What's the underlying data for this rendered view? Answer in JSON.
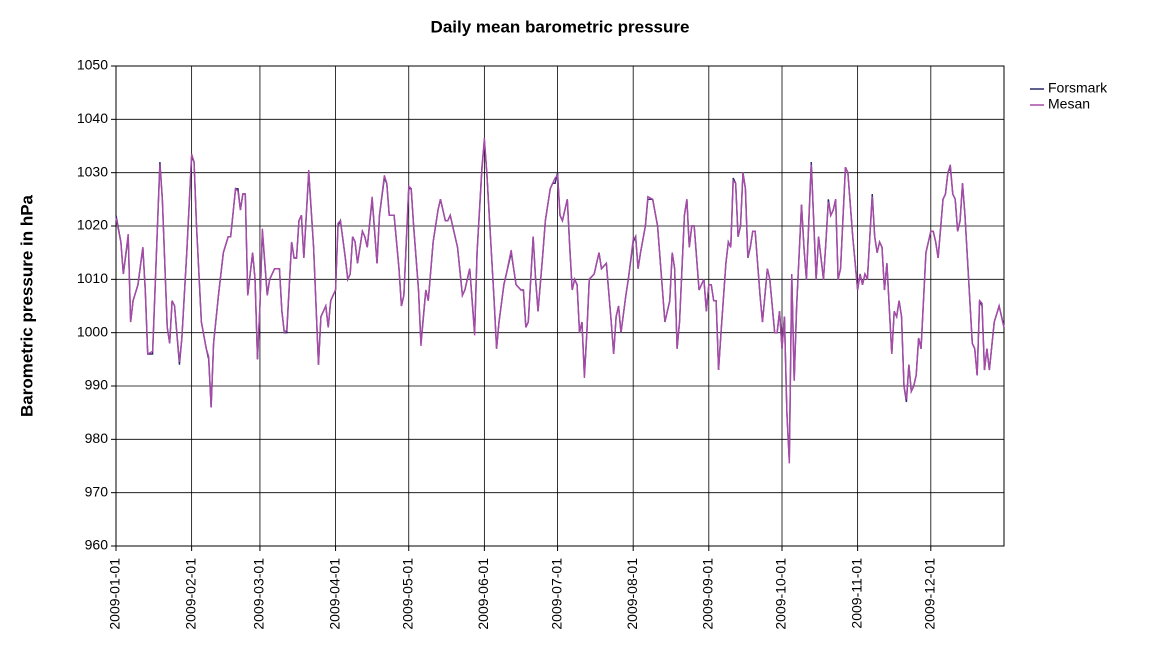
{
  "chart_data": {
    "type": "line",
    "title": "Daily mean barometric pressure",
    "y_label": "Barometric pressure in hPa",
    "x": [
      "2009-01-01",
      "2009-01-03",
      "2009-01-04",
      "2009-01-06",
      "2009-01-07",
      "2009-01-08",
      "2009-01-10",
      "2009-01-12",
      "2009-01-13",
      "2009-01-14",
      "2009-01-16",
      "2009-01-18",
      "2009-01-19",
      "2009-01-20",
      "2009-01-22",
      "2009-01-23",
      "2009-01-24",
      "2009-01-25",
      "2009-01-27",
      "2009-01-28",
      "2009-01-30",
      "2009-02-01",
      "2009-02-02",
      "2009-02-03",
      "2009-02-05",
      "2009-02-07",
      "2009-02-08",
      "2009-02-09",
      "2009-02-10",
      "2009-02-12",
      "2009-02-14",
      "2009-02-16",
      "2009-02-17",
      "2009-02-19",
      "2009-02-20",
      "2009-02-21",
      "2009-02-22",
      "2009-02-23",
      "2009-02-24",
      "2009-02-26",
      "2009-02-27",
      "2009-02-28",
      "2009-03-01",
      "2009-03-02",
      "2009-03-04",
      "2009-03-05",
      "2009-03-07",
      "2009-03-09",
      "2009-03-10",
      "2009-03-11",
      "2009-03-12",
      "2009-03-14",
      "2009-03-15",
      "2009-03-16",
      "2009-03-17",
      "2009-03-18",
      "2009-03-19",
      "2009-03-21",
      "2009-03-23",
      "2009-03-25",
      "2009-03-26",
      "2009-03-28",
      "2009-03-29",
      "2009-03-30",
      "2009-03-31",
      "2009-04-01",
      "2009-04-02",
      "2009-04-03",
      "2009-04-05",
      "2009-04-06",
      "2009-04-07",
      "2009-04-08",
      "2009-04-09",
      "2009-04-10",
      "2009-04-12",
      "2009-04-13",
      "2009-04-14",
      "2009-04-16",
      "2009-04-18",
      "2009-04-19",
      "2009-04-21",
      "2009-04-22",
      "2009-04-23",
      "2009-04-25",
      "2009-04-27",
      "2009-04-28",
      "2009-04-29",
      "2009-05-01",
      "2009-05-02",
      "2009-05-03",
      "2009-05-05",
      "2009-05-06",
      "2009-05-08",
      "2009-05-09",
      "2009-05-11",
      "2009-05-13",
      "2009-05-14",
      "2009-05-16",
      "2009-05-17",
      "2009-05-18",
      "2009-05-19",
      "2009-05-21",
      "2009-05-23",
      "2009-05-24",
      "2009-05-26",
      "2009-05-28",
      "2009-05-29",
      "2009-05-31",
      "2009-06-01",
      "2009-06-02",
      "2009-06-03",
      "2009-06-05",
      "2009-06-06",
      "2009-06-07",
      "2009-06-09",
      "2009-06-10",
      "2009-06-12",
      "2009-06-13",
      "2009-06-14",
      "2009-06-16",
      "2009-06-17",
      "2009-06-18",
      "2009-06-19",
      "2009-06-21",
      "2009-06-22",
      "2009-06-23",
      "2009-06-25",
      "2009-06-26",
      "2009-06-28",
      "2009-06-29",
      "2009-06-30",
      "2009-07-01",
      "2009-07-02",
      "2009-07-03",
      "2009-07-05",
      "2009-07-06",
      "2009-07-07",
      "2009-07-08",
      "2009-07-09",
      "2009-07-10",
      "2009-07-11",
      "2009-07-12",
      "2009-07-13",
      "2009-07-14",
      "2009-07-16",
      "2009-07-17",
      "2009-07-18",
      "2009-07-19",
      "2009-07-21",
      "2009-07-23",
      "2009-07-24",
      "2009-07-25",
      "2009-07-26",
      "2009-07-27",
      "2009-07-29",
      "2009-07-30",
      "2009-08-01",
      "2009-08-02",
      "2009-08-03",
      "2009-08-04",
      "2009-08-06",
      "2009-08-07",
      "2009-08-09",
      "2009-08-11",
      "2009-08-13",
      "2009-08-14",
      "2009-08-16",
      "2009-08-17",
      "2009-08-18",
      "2009-08-19",
      "2009-08-20",
      "2009-08-22",
      "2009-08-23",
      "2009-08-24",
      "2009-08-25",
      "2009-08-26",
      "2009-08-28",
      "2009-08-30",
      "2009-08-31",
      "2009-09-01",
      "2009-09-02",
      "2009-09-03",
      "2009-09-04",
      "2009-09-05",
      "2009-09-06",
      "2009-09-08",
      "2009-09-09",
      "2009-09-10",
      "2009-09-11",
      "2009-09-12",
      "2009-09-13",
      "2009-09-14",
      "2009-09-15",
      "2009-09-16",
      "2009-09-17",
      "2009-09-18",
      "2009-09-19",
      "2009-09-20",
      "2009-09-22",
      "2009-09-23",
      "2009-09-25",
      "2009-09-26",
      "2009-09-28",
      "2009-09-29",
      "2009-09-30",
      "2009-10-01",
      "2009-10-02",
      "2009-10-03",
      "2009-10-04",
      "2009-10-05",
      "2009-10-06",
      "2009-10-07",
      "2009-10-09",
      "2009-10-10",
      "2009-10-11",
      "2009-10-13",
      "2009-10-15",
      "2009-10-16",
      "2009-10-17",
      "2009-10-18",
      "2009-10-19",
      "2009-10-20",
      "2009-10-21",
      "2009-10-22",
      "2009-10-23",
      "2009-10-24",
      "2009-10-25",
      "2009-10-27",
      "2009-10-28",
      "2009-10-30",
      "2009-11-01",
      "2009-11-02",
      "2009-11-03",
      "2009-11-04",
      "2009-11-05",
      "2009-11-07",
      "2009-11-08",
      "2009-11-09",
      "2009-11-10",
      "2009-11-11",
      "2009-11-12",
      "2009-11-13",
      "2009-11-15",
      "2009-11-16",
      "2009-11-17",
      "2009-11-18",
      "2009-11-19",
      "2009-11-20",
      "2009-11-21",
      "2009-11-22",
      "2009-11-23",
      "2009-11-24",
      "2009-11-25",
      "2009-11-26",
      "2009-11-27",
      "2009-11-29",
      "2009-12-01",
      "2009-12-02",
      "2009-12-03",
      "2009-12-04",
      "2009-12-06",
      "2009-12-07",
      "2009-12-08",
      "2009-12-09",
      "2009-12-10",
      "2009-12-11",
      "2009-12-12",
      "2009-12-13",
      "2009-12-14",
      "2009-12-15",
      "2009-12-17",
      "2009-12-18",
      "2009-12-19",
      "2009-12-20",
      "2009-12-21",
      "2009-12-22",
      "2009-12-23",
      "2009-12-24",
      "2009-12-25",
      "2009-12-27",
      "2009-12-29",
      "2009-12-31"
    ],
    "series": [
      {
        "name": "Forsmark",
        "color": "#2b2a6b",
        "values": [
          1022,
          1017,
          1011,
          1018,
          1002,
          1006,
          1009,
          1016,
          1008,
          996,
          996,
          1020,
          1032,
          1025,
          1001,
          998,
          1006,
          1005,
          994,
          999,
          1015,
          1033,
          1032,
          1020,
          1002,
          997,
          995,
          986,
          998,
          1007,
          1015,
          1018,
          1018,
          1027,
          1027,
          1023,
          1026,
          1026,
          1007,
          1015,
          1010,
          995,
          1005,
          1019,
          1007,
          1010,
          1012,
          1012,
          1004,
          1000,
          1000,
          1017,
          1014,
          1014,
          1021,
          1022,
          1014,
          1030,
          1016,
          994,
          1003,
          1005,
          1001,
          1006,
          1007,
          1008,
          1020,
          1021,
          1014,
          1010,
          1011,
          1018,
          1017,
          1013,
          1019,
          1018,
          1016,
          1025,
          1013,
          1022,
          1029,
          1028,
          1022,
          1022,
          1012,
          1005,
          1007,
          1027,
          1027,
          1020,
          1008,
          998,
          1008,
          1006,
          1017,
          1023,
          1025,
          1021,
          1021,
          1022,
          1020,
          1016,
          1007,
          1008,
          1012,
          1000,
          1015,
          1031,
          1036,
          1030,
          1022,
          1006,
          997,
          1002,
          1009,
          1011,
          1015,
          1012,
          1009,
          1008,
          1008,
          1001,
          1002,
          1018,
          1010,
          1004,
          1015,
          1021,
          1027,
          1028,
          1028,
          1030,
          1022,
          1021,
          1025,
          1016,
          1008,
          1010,
          1009,
          1000,
          1002,
          992,
          1000,
          1010,
          1011,
          1013,
          1015,
          1012,
          1013,
          1002,
          996,
          1003,
          1005,
          1000,
          1007,
          1010,
          1017,
          1018,
          1012,
          1015,
          1020,
          1025,
          1025,
          1020,
          1008,
          1002,
          1006,
          1015,
          1012,
          997,
          1002,
          1022,
          1025,
          1016,
          1020,
          1020,
          1008,
          1010,
          1004,
          1009,
          1009,
          1006,
          1006,
          993,
          1000,
          1013,
          1017,
          1016,
          1029,
          1028,
          1018,
          1020,
          1030,
          1027,
          1014,
          1016,
          1019,
          1019,
          1007,
          1002,
          1012,
          1010,
          1000,
          1000,
          1004,
          997,
          1003,
          985,
          976,
          1011,
          991,
          1005,
          1024,
          1016,
          1010,
          1032,
          1010,
          1018,
          1014,
          1010,
          1017,
          1025,
          1022,
          1023,
          1025,
          1010,
          1012,
          1031,
          1030,
          1018,
          1008,
          1011,
          1009,
          1011,
          1010,
          1026,
          1018,
          1015,
          1017,
          1016,
          1008,
          1013,
          996,
          1004,
          1003,
          1006,
          1003,
          990,
          987,
          994,
          989,
          990,
          992,
          999,
          997,
          1015,
          1019,
          1019,
          1017,
          1014,
          1025,
          1026,
          1030,
          1031,
          1026,
          1025,
          1019,
          1021,
          1028,
          1022,
          1006,
          998,
          997,
          992,
          1006,
          1005,
          993,
          997,
          993,
          1002,
          1005,
          1001
        ]
      },
      {
        "name": "Mesan",
        "color": "#a84aa8",
        "values": [
          1021.5,
          1017,
          1011,
          1018.5,
          1002,
          1006,
          1009,
          1016,
          1008,
          996,
          996.5,
          1020,
          1031.5,
          1025,
          1001,
          998,
          1006,
          1005,
          994.5,
          999,
          1015,
          1033.5,
          1032,
          1020,
          1002,
          997,
          995.5,
          986,
          998,
          1007,
          1015,
          1018,
          1018,
          1027,
          1026.5,
          1023,
          1026,
          1026,
          1007,
          1015,
          1010,
          995,
          1005,
          1019.5,
          1007,
          1010,
          1012,
          1012,
          1004,
          1000,
          1000.5,
          1017,
          1014,
          1014,
          1021,
          1022,
          1014,
          1030.5,
          1016,
          994,
          1003,
          1005,
          1001,
          1006,
          1007,
          1008,
          1020.5,
          1021,
          1014,
          1010,
          1011,
          1018,
          1017,
          1013,
          1019,
          1018,
          1016,
          1025.5,
          1013,
          1022,
          1029.5,
          1028,
          1022,
          1022,
          1012,
          1005,
          1007,
          1027.5,
          1027,
          1020,
          1008,
          997.5,
          1008,
          1006,
          1017,
          1023,
          1025,
          1021,
          1021,
          1022,
          1020,
          1016,
          1007,
          1008,
          1012,
          999.5,
          1015,
          1030.5,
          1036.5,
          1030,
          1022,
          1006,
          997,
          1002,
          1009,
          1011,
          1015.5,
          1012,
          1009,
          1008,
          1008,
          1001,
          1002,
          1018,
          1010,
          1004,
          1015,
          1021,
          1027,
          1028,
          1029,
          1029.5,
          1022,
          1021,
          1025,
          1016,
          1008,
          1010,
          1009,
          1000,
          1002,
          991.5,
          1000,
          1010,
          1011,
          1013,
          1015,
          1012,
          1013,
          1002,
          996,
          1003,
          1005,
          1000,
          1007,
          1010,
          1017.5,
          1018,
          1012,
          1015,
          1020,
          1025.5,
          1025,
          1020,
          1008,
          1002,
          1006,
          1015,
          1012,
          997,
          1002,
          1022,
          1025,
          1016,
          1020,
          1020,
          1008,
          1010,
          1004,
          1009,
          1009,
          1006,
          1006,
          993,
          1000,
          1013,
          1017,
          1016,
          1028.5,
          1028,
          1018,
          1020,
          1030,
          1027,
          1014,
          1016,
          1019,
          1019,
          1007,
          1002,
          1012,
          1010,
          1000,
          1000,
          1004,
          997,
          1003,
          985,
          975.5,
          1011,
          991,
          1005,
          1024,
          1016,
          1010,
          1031.5,
          1010,
          1018,
          1014,
          1010,
          1017,
          1024.5,
          1022,
          1023,
          1025,
          1010,
          1012,
          1031,
          1030,
          1018,
          1008,
          1011,
          1009,
          1011,
          1010,
          1025.5,
          1018,
          1015,
          1017,
          1016,
          1008,
          1013,
          996,
          1004,
          1003,
          1006,
          1003,
          990,
          987.5,
          994,
          989,
          990,
          992,
          999,
          997,
          1015,
          1019,
          1019,
          1017,
          1014,
          1025,
          1026,
          1030,
          1031.5,
          1026,
          1025,
          1019,
          1021,
          1028,
          1022,
          1006,
          998,
          997,
          992,
          1006,
          1005.5,
          993,
          997,
          993,
          1002,
          1005,
          1001
        ]
      }
    ],
    "xlim": [
      "2009-01-01",
      "2009-12-31"
    ],
    "xticks": [
      "2009-01-01",
      "2009-02-01",
      "2009-03-01",
      "2009-04-01",
      "2009-05-01",
      "2009-06-01",
      "2009-07-01",
      "2009-08-01",
      "2009-09-01",
      "2009-10-01",
      "2009-11-01",
      "2009-12-01"
    ],
    "ylim": [
      960,
      1050
    ],
    "yticks": [
      960,
      970,
      980,
      990,
      1000,
      1010,
      1020,
      1030,
      1040,
      1050
    ],
    "grid": true,
    "legend": "top-right"
  }
}
